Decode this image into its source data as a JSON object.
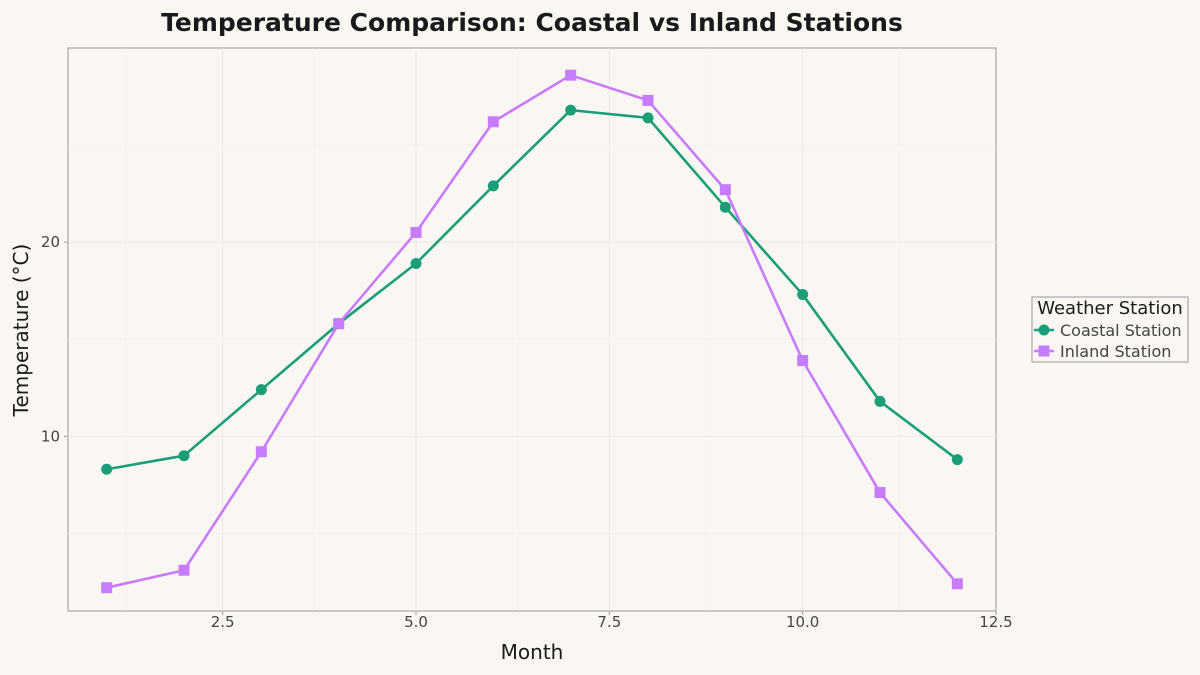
{
  "chart_data": {
    "type": "line",
    "title": "Temperature Comparison: Coastal vs Inland Stations",
    "xlabel": "Month",
    "ylabel": "Temperature (°C)",
    "xlim": [
      0.5,
      12.5
    ],
    "ylim": [
      1.0,
      30.0
    ],
    "x_ticks": [
      2.5,
      5.0,
      7.5,
      10.0,
      12.5
    ],
    "x_tick_labels": [
      "2.5",
      "5.0",
      "7.5",
      "10.0",
      "12.5"
    ],
    "y_ticks": [
      10,
      20
    ],
    "y_tick_labels": [
      "10",
      "20"
    ],
    "grid": true,
    "legend": {
      "title": "Weather Station",
      "placement": "right"
    },
    "x": [
      1,
      2,
      3,
      4,
      5,
      6,
      7,
      8,
      9,
      10,
      11,
      12
    ],
    "series": [
      {
        "name": "Coastal Station",
        "color": "#1a9e77",
        "marker": "circle",
        "values": [
          8.3,
          9.0,
          12.4,
          15.8,
          18.9,
          22.9,
          26.8,
          26.4,
          21.8,
          17.3,
          11.8,
          8.8
        ]
      },
      {
        "name": "Inland Station",
        "color": "#c77cff",
        "marker": "square",
        "values": [
          2.2,
          3.1,
          9.2,
          15.8,
          20.5,
          26.2,
          28.6,
          27.3,
          22.7,
          13.9,
          7.1,
          2.4
        ]
      }
    ]
  }
}
